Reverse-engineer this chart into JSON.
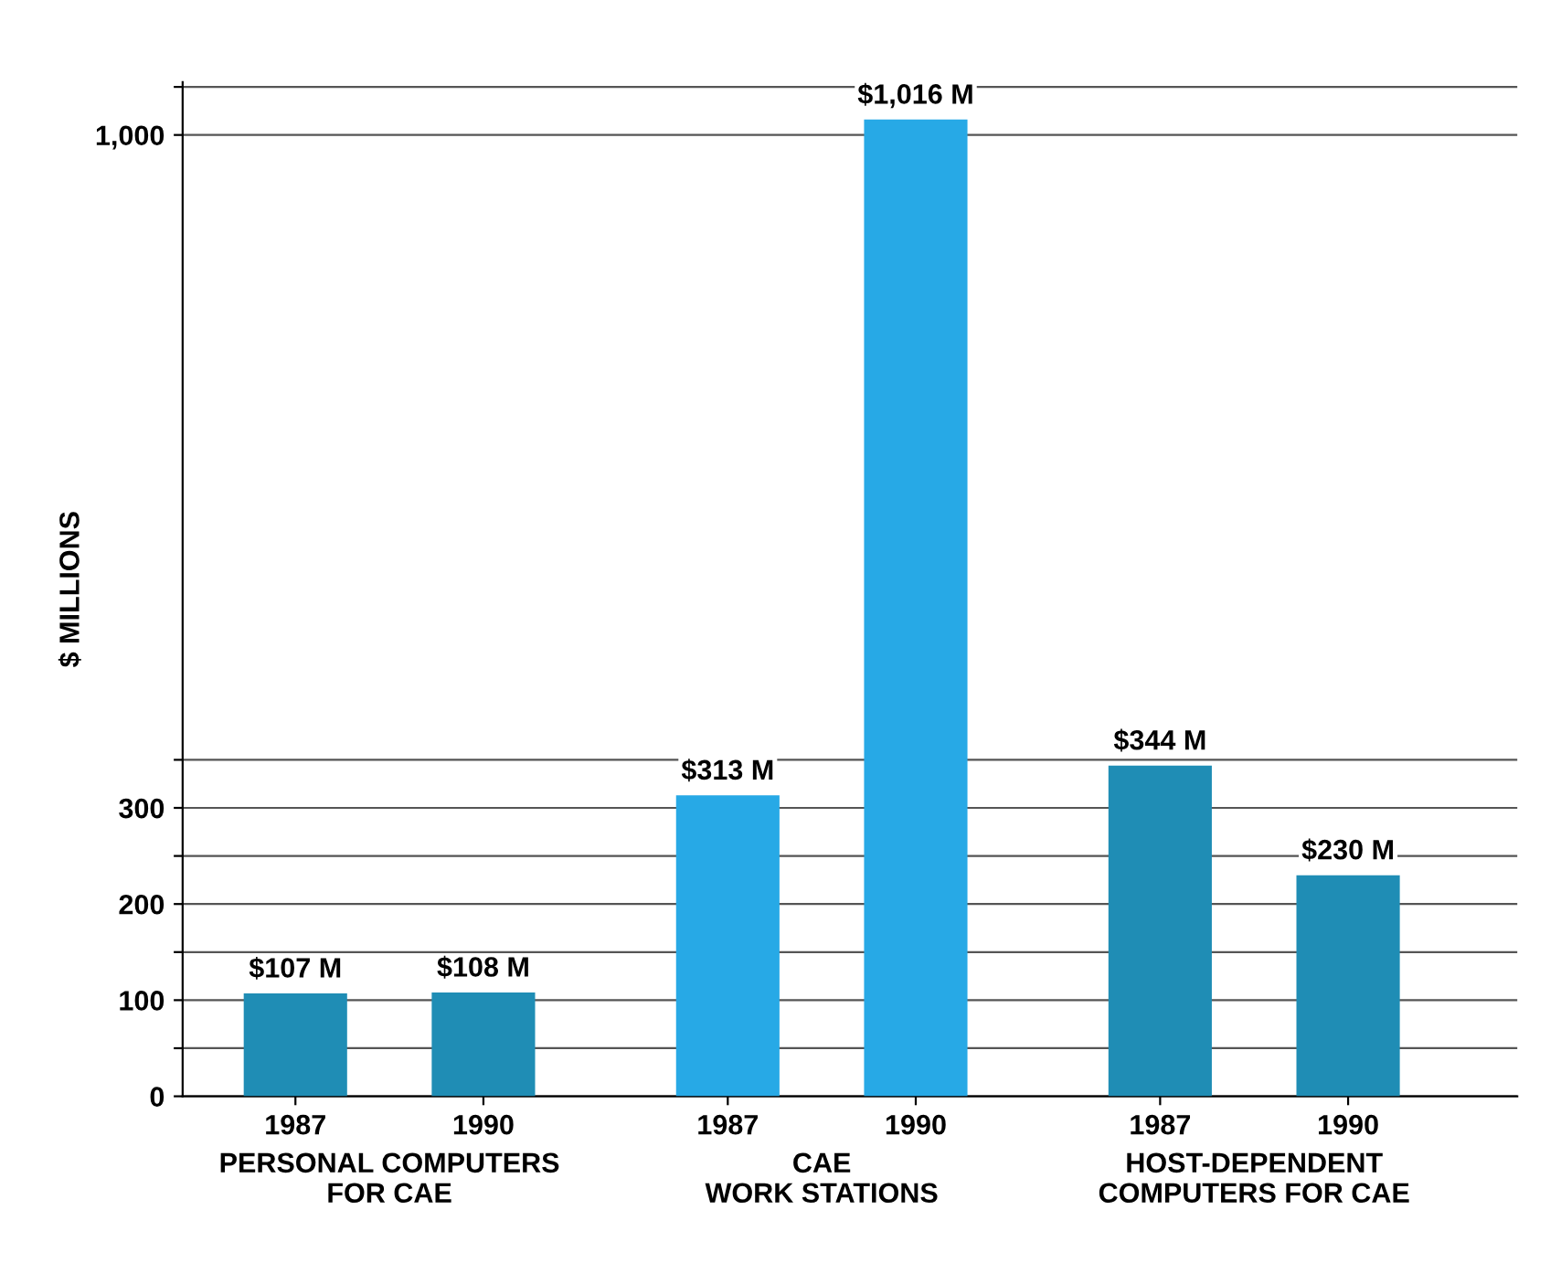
{
  "chart_data": {
    "type": "bar",
    "categories": [
      "1987",
      "1990",
      "1987",
      "1990",
      "1987",
      "1990"
    ],
    "values": [
      107,
      108,
      313,
      1016,
      344,
      230
    ],
    "colors": [
      "#1f8db5",
      "#1f8db5",
      "#27a9e6",
      "#27a9e6",
      "#1f8db5",
      "#1f8db5"
    ],
    "value_labels": [
      "$107 M",
      "$108 M",
      "$313 M",
      "$1,016 M",
      "$344 M",
      "$230 M"
    ],
    "ylim": [
      0,
      1055
    ],
    "yticks": [
      0,
      {
        "value": 50,
        "label": null
      },
      100,
      {
        "value": 150,
        "label": null
      },
      200,
      {
        "value": 250,
        "label": null
      },
      300,
      {
        "value": 350,
        "label": null
      },
      {
        "value": 1000,
        "label": "1,000"
      },
      {
        "value": 1050,
        "label": null
      }
    ],
    "ylabel": "$ MILLIONS",
    "grid": "y",
    "annotations": [
      "PERSONAL COMPUTERS\nFOR CAE",
      "CAE\nWORK STATIONS",
      "HOST-DEPENDENT\nCOMPUTERS FOR CAE"
    ]
  }
}
